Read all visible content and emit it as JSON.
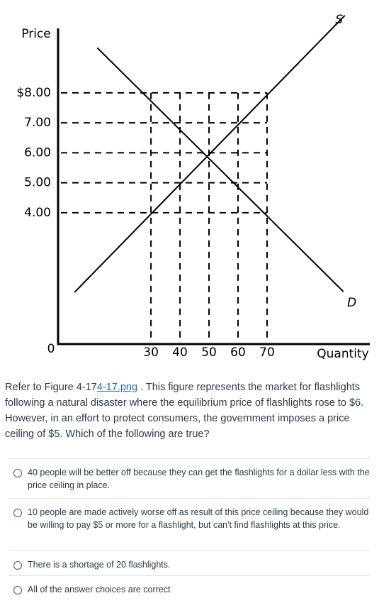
{
  "figure": {
    "chart_data": {
      "type": "line",
      "ylabel": "Price",
      "xlabel": "Quantity",
      "origin_label": "0",
      "xlim": [
        -2,
        105.4
      ],
      "ylim": [
        -0.38,
        10.15
      ],
      "xticks": [
        30,
        40,
        50,
        60,
        70
      ],
      "yticks": [
        {
          "value": 4,
          "label": "4.00"
        },
        {
          "value": 5,
          "label": "5.00"
        },
        {
          "value": 6,
          "label": "6.00"
        },
        {
          "value": 7,
          "label": "7.00"
        },
        {
          "value": 8,
          "label": "$8.00"
        }
      ],
      "grid": true,
      "series": [
        {
          "name": "S",
          "color": "#000000",
          "x": [
            3.7,
            96.8
          ],
          "values": [
            1.35,
            10.58
          ]
        },
        {
          "name": "D",
          "color": "#000000",
          "x": [
            11.5,
            96.3
          ],
          "values": [
            9.5,
            1.37
          ]
        }
      ]
    }
  },
  "question": {
    "prefix": "Refer to Figure 4-17",
    "link": "4-17.png",
    "suffix": " . This figure represents the market for flashlights following a natural disaster where the equilibrium price of flashlights rose to $6.  However, in an effort to protect consumers, the government imposes a price ceiling of $5. Which of the following are true?"
  },
  "options": [
    "40 people will be better off because they can get the flashlights for a dollar less with the price ceiling in place.",
    "10 people are made actively worse off as result of this price ceiling because they would be willing to pay $5 or more for a flashlight, but can't find flashlights at this price.",
    "There is a shortage of 20 flashlights.",
    "All of the answer choices are correct"
  ]
}
